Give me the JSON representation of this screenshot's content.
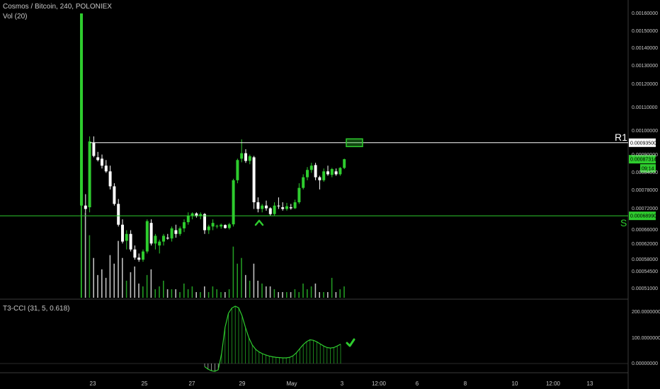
{
  "header": {
    "title": "Cosmos / Bitcoin, 240, POLONIEX",
    "volume_indicator": "Vol (20)",
    "cci_indicator": "T3-CCI (31, 5, 0.618)"
  },
  "colors": {
    "background": "#000000",
    "up": "#2ecc2e",
    "down": "#ffffff",
    "resistance": "#ffffff",
    "support": "#2ecc2e",
    "target_box": "#2ecc2e"
  },
  "chart_data": {
    "type": "candlestick",
    "price_axis": {
      "ticks": [
        "0.00160000",
        "0.00150000",
        "0.00140000",
        "0.00130000",
        "0.00120000",
        "0.00110000",
        "0.00100000",
        "0.00090000",
        "0.00084000",
        "0.00078000",
        "0.00072000",
        "0.00066000",
        "0.00062000",
        "0.00058000",
        "0.00054500",
        "0.00051000"
      ]
    },
    "cci_axis": {
      "ticks": [
        "200.00000000",
        "100.00000000",
        "0.00000000"
      ]
    },
    "time_axis": {
      "ticks": [
        "23",
        "25",
        "27",
        "29",
        "May",
        "3",
        "12:00",
        "6",
        "8",
        "10",
        "12:00",
        "13"
      ]
    },
    "candles": [
      {
        "o": 0.00072,
        "h": 0.0016,
        "l": 0.000715,
        "c": 0.0016,
        "v": 100
      },
      {
        "o": 0.00072,
        "h": 0.000755,
        "l": 0.0007,
        "c": 0.00071,
        "v": 30
      },
      {
        "o": 0.000715,
        "h": 0.00096,
        "l": 0.0007,
        "c": 0.00094,
        "v": 22
      },
      {
        "o": 0.000935,
        "h": 0.00096,
        "l": 0.00088,
        "c": 0.000885,
        "v": 14
      },
      {
        "o": 0.00088,
        "h": 0.0009,
        "l": 0.000865,
        "c": 0.00087,
        "v": 8
      },
      {
        "o": 0.000875,
        "h": 0.00089,
        "l": 0.00084,
        "c": 0.00085,
        "v": 10
      },
      {
        "o": 0.00085,
        "h": 0.00087,
        "l": 0.000825,
        "c": 0.00083,
        "v": 7
      },
      {
        "o": 0.00083,
        "h": 0.00085,
        "l": 0.00077,
        "c": 0.00078,
        "v": 15
      },
      {
        "o": 0.00078,
        "h": 0.00079,
        "l": 0.00072,
        "c": 0.000725,
        "v": 12
      },
      {
        "o": 0.000725,
        "h": 0.00074,
        "l": 0.00066,
        "c": 0.000665,
        "v": 20
      },
      {
        "o": 0.000665,
        "h": 0.00068,
        "l": 0.000615,
        "c": 0.00062,
        "v": 14
      },
      {
        "o": 0.000622,
        "h": 0.00065,
        "l": 0.0006,
        "c": 0.00064,
        "v": 6
      },
      {
        "o": 0.00064,
        "h": 0.00065,
        "l": 0.000595,
        "c": 0.0006,
        "v": 9
      },
      {
        "o": 0.0006,
        "h": 0.00061,
        "l": 0.000575,
        "c": 0.00058,
        "v": 11
      },
      {
        "o": 0.00058,
        "h": 0.00059,
        "l": 0.00057,
        "c": 0.000575,
        "v": 5
      },
      {
        "o": 0.000575,
        "h": 0.0006,
        "l": 0.00057,
        "c": 0.000595,
        "v": 4
      },
      {
        "o": 0.000595,
        "h": 0.00068,
        "l": 0.00059,
        "c": 0.000675,
        "v": 8
      },
      {
        "o": 0.00067,
        "h": 0.00068,
        "l": 0.00061,
        "c": 0.000615,
        "v": 10
      },
      {
        "o": 0.000615,
        "h": 0.00064,
        "l": 0.0006,
        "c": 0.000635,
        "v": 3
      },
      {
        "o": 0.00061,
        "h": 0.000625,
        "l": 0.00059,
        "c": 0.00062,
        "v": 4
      },
      {
        "o": 0.00062,
        "h": 0.00064,
        "l": 0.00061,
        "c": 0.000635,
        "v": 6
      },
      {
        "o": 0.00063,
        "h": 0.00064,
        "l": 0.000625,
        "c": 0.000628,
        "v": 3
      },
      {
        "o": 0.000628,
        "h": 0.00066,
        "l": 0.00062,
        "c": 0.000655,
        "v": 3
      },
      {
        "o": 0.00065,
        "h": 0.000665,
        "l": 0.00063,
        "c": 0.00064,
        "v": 3
      },
      {
        "o": 0.00064,
        "h": 0.00066,
        "l": 0.000635,
        "c": 0.000655,
        "v": 2
      },
      {
        "o": 0.000655,
        "h": 0.00068,
        "l": 0.000645,
        "c": 0.000672,
        "v": 5
      },
      {
        "o": 0.000672,
        "h": 0.0007,
        "l": 0.000665,
        "c": 0.00069,
        "v": 3
      },
      {
        "o": 0.00069,
        "h": 0.0007,
        "l": 0.00068,
        "c": 0.000697,
        "v": 4
      },
      {
        "o": 0.000697,
        "h": 0.0007,
        "l": 0.000685,
        "c": 0.000689,
        "v": 2
      },
      {
        "o": 0.00069,
        "h": 0.0007,
        "l": 0.00068,
        "c": 0.000695,
        "v": 2
      },
      {
        "o": 0.000695,
        "h": 0.000698,
        "l": 0.00064,
        "c": 0.00065,
        "v": 4
      },
      {
        "o": 0.00065,
        "h": 0.000665,
        "l": 0.00064,
        "c": 0.00066,
        "v": 2
      },
      {
        "o": 0.00066,
        "h": 0.00068,
        "l": 0.00065,
        "c": 0.00067,
        "v": 4
      },
      {
        "o": 0.000662,
        "h": 0.000665,
        "l": 0.000655,
        "c": 0.000662,
        "v": 3
      },
      {
        "o": 0.00066,
        "h": 0.000668,
        "l": 0.000654,
        "c": 0.000665,
        "v": 2
      },
      {
        "o": 0.000664,
        "h": 0.000666,
        "l": 0.000654,
        "c": 0.000656,
        "v": 2
      },
      {
        "o": 0.000656,
        "h": 0.00067,
        "l": 0.000652,
        "c": 0.000666,
        "v": 3
      },
      {
        "o": 0.000666,
        "h": 0.000805,
        "l": 0.00066,
        "c": 0.0008,
        "v": 18
      },
      {
        "o": 0.0008,
        "h": 0.000875,
        "l": 0.00079,
        "c": 0.00087,
        "v": 12
      },
      {
        "o": 0.000875,
        "h": 0.000948,
        "l": 0.000862,
        "c": 0.000895,
        "v": 14
      },
      {
        "o": 0.000895,
        "h": 0.00091,
        "l": 0.00086,
        "c": 0.000867,
        "v": 8
      },
      {
        "o": 0.000867,
        "h": 0.00089,
        "l": 0.000855,
        "c": 0.000884,
        "v": 6
      },
      {
        "o": 0.00088,
        "h": 0.000885,
        "l": 0.00071,
        "c": 0.00073,
        "v": 12
      },
      {
        "o": 0.00073,
        "h": 0.000745,
        "l": 0.0007,
        "c": 0.00071,
        "v": 6
      },
      {
        "o": 0.00071,
        "h": 0.000725,
        "l": 0.0007,
        "c": 0.00072,
        "v": 5
      },
      {
        "o": 0.00072,
        "h": 0.000735,
        "l": 0.000705,
        "c": 0.000712,
        "v": 4
      },
      {
        "o": 0.000712,
        "h": 0.000715,
        "l": 0.00069,
        "c": 0.000695,
        "v": 4
      },
      {
        "o": 0.000695,
        "h": 0.00073,
        "l": 0.00069,
        "c": 0.00072,
        "v": 3
      },
      {
        "o": 0.00072,
        "h": 0.000745,
        "l": 0.00071,
        "c": 0.000718,
        "v": 2
      },
      {
        "o": 0.000715,
        "h": 0.00073,
        "l": 0.000705,
        "c": 0.00071,
        "v": 2
      },
      {
        "o": 0.00071,
        "h": 0.000728,
        "l": 0.000705,
        "c": 0.000718,
        "v": 2
      },
      {
        "o": 0.000715,
        "h": 0.000725,
        "l": 0.000708,
        "c": 0.000712,
        "v": 2
      },
      {
        "o": 0.000712,
        "h": 0.000738,
        "l": 0.00071,
        "c": 0.00073,
        "v": 3
      },
      {
        "o": 0.00073,
        "h": 0.00079,
        "l": 0.000725,
        "c": 0.000775,
        "v": 2
      },
      {
        "o": 0.000775,
        "h": 0.00082,
        "l": 0.00077,
        "c": 0.00081,
        "v": 5
      },
      {
        "o": 0.00081,
        "h": 0.000845,
        "l": 0.0008,
        "c": 0.000835,
        "v": 3
      },
      {
        "o": 0.000835,
        "h": 0.00086,
        "l": 0.000825,
        "c": 0.00085,
        "v": 4
      },
      {
        "o": 0.000852,
        "h": 0.00086,
        "l": 0.0008,
        "c": 0.00081,
        "v": 5
      },
      {
        "o": 0.00081,
        "h": 0.000815,
        "l": 0.00077,
        "c": 0.0008,
        "v": 2
      },
      {
        "o": 0.0008,
        "h": 0.00084,
        "l": 0.000795,
        "c": 0.00083,
        "v": 2
      },
      {
        "o": 0.00083,
        "h": 0.00085,
        "l": 0.000815,
        "c": 0.00082,
        "v": 2
      },
      {
        "o": 0.000818,
        "h": 0.000842,
        "l": 0.00081,
        "c": 0.000838,
        "v": 7
      },
      {
        "o": 0.00083,
        "h": 0.00084,
        "l": 0.000815,
        "c": 0.00082,
        "v": 2
      },
      {
        "o": 0.00082,
        "h": 0.000845,
        "l": 0.000815,
        "c": 0.000842,
        "v": 3
      },
      {
        "o": 0.000842,
        "h": 0.000875,
        "l": 0.000838,
        "c": 0.000873,
        "v": 4
      }
    ],
    "cci": [
      {
        "i": 0,
        "v": -12
      },
      {
        "i": 1,
        "v": -22
      },
      {
        "i": 2,
        "v": -28
      },
      {
        "i": 3,
        "v": -30
      },
      {
        "i": 4,
        "v": -24
      },
      {
        "i": 5,
        "v": 40
      },
      {
        "i": 6,
        "v": 140
      },
      {
        "i": 7,
        "v": 195
      },
      {
        "i": 8,
        "v": 215
      },
      {
        "i": 9,
        "v": 222
      },
      {
        "i": 10,
        "v": 216
      },
      {
        "i": 11,
        "v": 185
      },
      {
        "i": 12,
        "v": 140
      },
      {
        "i": 13,
        "v": 100
      },
      {
        "i": 14,
        "v": 72
      },
      {
        "i": 15,
        "v": 55
      },
      {
        "i": 16,
        "v": 45
      },
      {
        "i": 17,
        "v": 38
      },
      {
        "i": 18,
        "v": 33
      },
      {
        "i": 19,
        "v": 29
      },
      {
        "i": 20,
        "v": 26
      },
      {
        "i": 21,
        "v": 24
      },
      {
        "i": 22,
        "v": 23
      },
      {
        "i": 23,
        "v": 22
      },
      {
        "i": 24,
        "v": 22
      },
      {
        "i": 25,
        "v": 24
      },
      {
        "i": 26,
        "v": 30
      },
      {
        "i": 27,
        "v": 42
      },
      {
        "i": 28,
        "v": 58
      },
      {
        "i": 29,
        "v": 73
      },
      {
        "i": 30,
        "v": 85
      },
      {
        "i": 31,
        "v": 92
      },
      {
        "i": 32,
        "v": 90
      },
      {
        "i": 33,
        "v": 84
      },
      {
        "i": 34,
        "v": 76
      },
      {
        "i": 35,
        "v": 68
      },
      {
        "i": 36,
        "v": 62
      },
      {
        "i": 37,
        "v": 60
      },
      {
        "i": 38,
        "v": 62
      },
      {
        "i": 39,
        "v": 68
      },
      {
        "i": 40,
        "v": 75
      }
    ],
    "levels": {
      "resistance": {
        "label": "R1",
        "price": 0.000935,
        "tag": "0.00093500"
      },
      "support": {
        "label": "S",
        "price": 0.00069,
        "tag": "0.00068990"
      },
      "last_price": {
        "tag": "0.00087314"
      },
      "countdown": {
        "tag": "09:14"
      }
    },
    "annotations": {
      "target_box": {
        "price_top": 0.00095,
        "price_bottom": 0.00092
      },
      "buy_marker": "caret-up",
      "cci_marker": "check-mark"
    }
  }
}
